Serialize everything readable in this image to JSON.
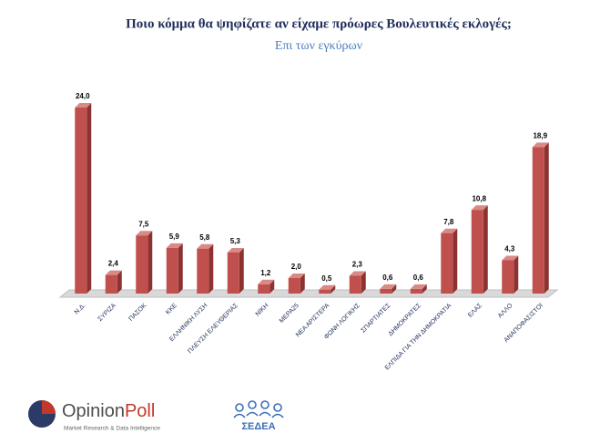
{
  "chart_data": {
    "type": "bar",
    "title": "Ποιο κόμμα θα ψηφίζατε αν είχαμε πρόωρες Βουλευτικές εκλογές;",
    "subtitle": "Επι των εγκύρων",
    "categories": [
      "Ν.Δ.",
      "ΣΥΡΙΖΑ",
      "ΠΑΣΟΚ",
      "ΚΚΕ",
      "ΕΛΛΗΝΙΚΗ ΛΥΣΗ",
      "ΠΛΕΥΣΗ ΕΛΕΥΘΕΡΙΑΣ",
      "ΝΙΚΗ",
      "ΜΕΡΑ25",
      "ΝΕΑ ΑΡΙΣΤΕΡΑ",
      "ΦΩΝΗ ΛΟΓΙΚΗΣ",
      "ΣΠΑΡΤΙΑΤΕΣ",
      "ΔΗΜΟΚΡΑΤΕΣ",
      "ΕΛΠΙΔΑ ΓΙΑ ΤΗΝ ΔΗΜΟΚΡΑΤΙΑ",
      "ΕΛΑΣ",
      "ΑΛΛΟ",
      "ΑΝΑΠΟΦΑΣΙΣΤΟΙ"
    ],
    "values": [
      24.0,
      2.4,
      7.5,
      5.9,
      5.8,
      5.3,
      1.2,
      2.0,
      0.5,
      2.3,
      0.6,
      0.6,
      7.8,
      10.8,
      4.3,
      18.9
    ],
    "value_labels": [
      "24,0",
      "2,4",
      "7,5",
      "5,9",
      "5,8",
      "5,3",
      "1,2",
      "2,0",
      "0,5",
      "2,3",
      "0,6",
      "0,6",
      "7,8",
      "10,8",
      "4,3",
      "18,9"
    ],
    "color": "#c0504d"
  },
  "footer": {
    "brand_a": "Opinion",
    "brand_b": "Poll",
    "tagline": "Market Research & Data Intelligence",
    "partner": "ΣΕΔΕΑ"
  }
}
